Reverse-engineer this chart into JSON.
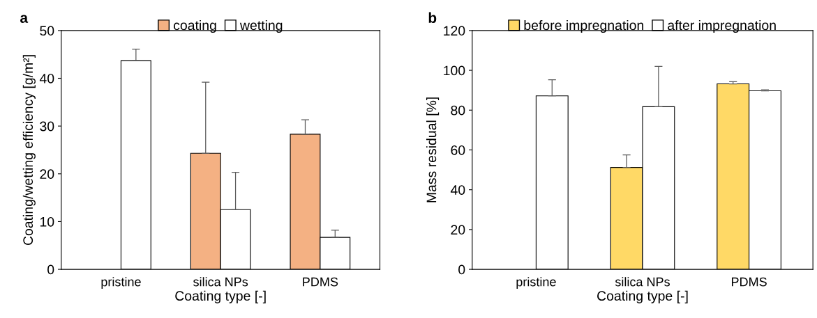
{
  "chart_data": [
    {
      "type": "bar",
      "title": "a",
      "xlabel": "Coating type [-]",
      "ylabel": "Coating/wetting efficiency [g/m²]",
      "categories": [
        "pristine",
        "silica NPs",
        "PDMS"
      ],
      "ylim": [
        0,
        50
      ],
      "yticks": [
        0,
        10,
        20,
        30,
        40,
        50
      ],
      "legend": "top",
      "grid": false,
      "series": [
        {
          "name": "coating",
          "color": "#f4b183",
          "values": [
            null,
            24.3,
            28.3
          ],
          "errors": [
            null,
            [
              24.3,
              39.2
            ],
            [
              28.3,
              31.3
            ]
          ]
        },
        {
          "name": "wetting",
          "color": "#ffffff",
          "values": [
            43.7,
            12.5,
            6.7
          ],
          "errors": [
            [
              43.7,
              46.1
            ],
            [
              12.5,
              20.3
            ],
            [
              6.7,
              8.2
            ]
          ]
        }
      ]
    },
    {
      "type": "bar",
      "title": "b",
      "xlabel": "Coating type [-]",
      "ylabel": "Mass residual [%]",
      "categories": [
        "pristine",
        "silica NPs",
        "PDMS"
      ],
      "ylim": [
        0,
        120
      ],
      "yticks": [
        0,
        20,
        40,
        60,
        80,
        100,
        120
      ],
      "legend": "top",
      "grid": false,
      "series": [
        {
          "name": "before impregnation",
          "color": "#ffd966",
          "values": [
            null,
            51.2,
            93.2
          ],
          "errors": [
            null,
            [
              51.2,
              57.5
            ],
            [
              93.2,
              94.3
            ]
          ]
        },
        {
          "name": "after impregnation",
          "color": "#ffffff",
          "values": [
            87.2,
            81.7,
            89.7
          ],
          "errors": [
            [
              87.2,
              95.3
            ],
            [
              81.7,
              102.0
            ],
            [
              89.7,
              90.2
            ]
          ]
        }
      ]
    }
  ]
}
